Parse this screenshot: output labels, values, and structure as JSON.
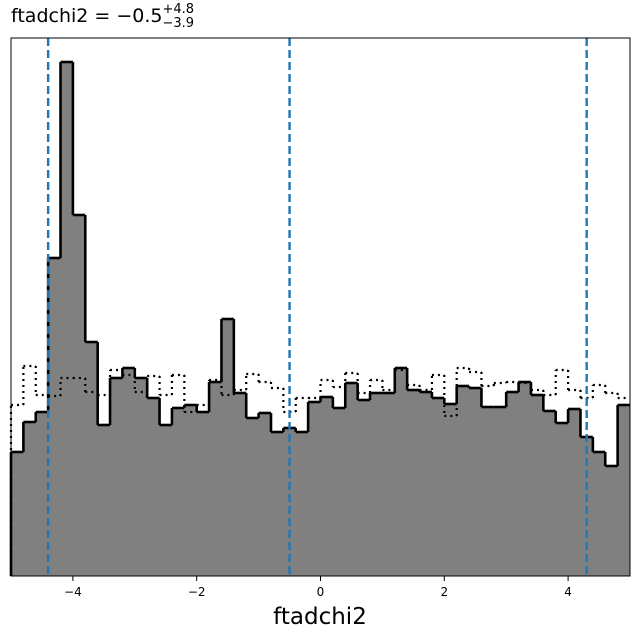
{
  "chart_data": {
    "type": "histogram",
    "title": "ftadchi2 = −0.5",
    "title_sup": "+4.8",
    "title_sub": "−3.9",
    "x_label": "ftadchi2",
    "bins": [
      -5,
      -4.8,
      -4.6,
      -4.4,
      -4.2,
      -4,
      -3.8,
      -3.6,
      -3.4,
      -3.2,
      -3,
      -2.8,
      -2.6,
      -2.4,
      -2.2,
      -2,
      -1.8,
      -1.6,
      -1.4,
      -1.2,
      -1,
      -0.8,
      -0.6,
      -0.4,
      -0.2,
      0,
      0.2,
      0.4,
      0.6,
      0.8,
      1,
      1.2,
      1.4,
      1.6,
      1.8,
      2,
      2.2,
      2.4,
      2.6,
      2.8,
      3,
      3.2,
      3.4,
      3.6,
      3.8,
      4,
      4.2,
      4.4,
      4.6,
      4.8,
      5
    ],
    "series": [
      {
        "fill": "#808080",
        "color": "#000000",
        "line_style": "solid",
        "values": [
          124,
          154,
          164,
          318,
          514,
          361,
          234,
          151,
          198,
          208,
          198,
          178,
          151,
          168,
          171,
          164,
          194,
          257,
          183,
          158,
          163,
          144,
          148,
          144,
          174,
          179,
          168,
          193,
          176,
          183,
          183,
          208,
          186,
          184,
          178,
          172,
          190,
          188,
          169,
          169,
          184,
          194,
          181,
          165,
          153,
          167,
          139,
          124,
          110,
          171
        ]
      },
      {
        "color": "#000000",
        "line_style": "dotted",
        "values": [
          171,
          210,
          181,
          180,
          198,
          198,
          184,
          181,
          206,
          201,
          184,
          200,
          181,
          201,
          164,
          171,
          196,
          181,
          186,
          202,
          194,
          188,
          164,
          178,
          178,
          196,
          189,
          203,
          183,
          196,
          186,
          206,
          191,
          186,
          201,
          160,
          208,
          204,
          190,
          193,
          194,
          193,
          186,
          181,
          206,
          186,
          178,
          191,
          183,
          178
        ]
      }
    ],
    "quantiles": [
      -4.4,
      -0.5,
      4.3
    ],
    "quantile_color": "#1f77b4",
    "xlim": [
      -5,
      5
    ],
    "ylim": [
      0,
      538
    ],
    "xticks": [
      {
        "value": -4,
        "label": "−4"
      },
      {
        "value": -2,
        "label": "−2"
      },
      0,
      2,
      4
    ]
  }
}
